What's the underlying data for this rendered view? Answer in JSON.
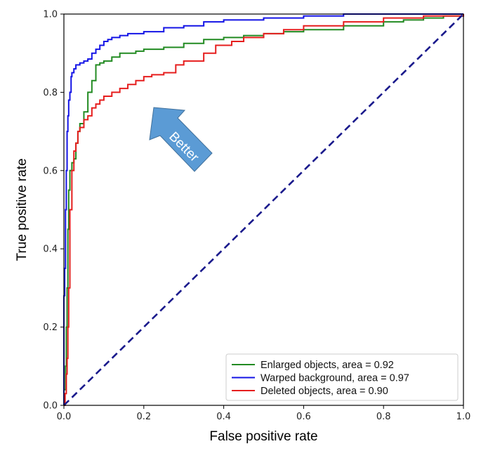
{
  "chart_data": {
    "type": "line",
    "title": "",
    "xlabel": "False positive rate",
    "ylabel": "True positive rate",
    "xlim": [
      0.0,
      1.0
    ],
    "ylim": [
      0.0,
      1.0
    ],
    "x_ticks": [
      "0.0",
      "0.2",
      "0.4",
      "0.6",
      "0.8",
      "1.0"
    ],
    "y_ticks": [
      "0.0",
      "0.2",
      "0.4",
      "0.6",
      "0.8",
      "1.0"
    ],
    "grid": false,
    "legend_position": "lower-right",
    "annotation": "Better",
    "series": [
      {
        "name": "Enlarged objects, area = 0.92",
        "color": "#228b22",
        "x": [
          0.0,
          0.0,
          0.004,
          0.006,
          0.008,
          0.01,
          0.012,
          0.015,
          0.02,
          0.025,
          0.03,
          0.035,
          0.04,
          0.05,
          0.06,
          0.07,
          0.08,
          0.09,
          0.1,
          0.12,
          0.14,
          0.16,
          0.18,
          0.2,
          0.25,
          0.3,
          0.35,
          0.4,
          0.45,
          0.5,
          0.55,
          0.6,
          0.7,
          0.8,
          0.85,
          0.9,
          0.95,
          1.0
        ],
        "y": [
          0.0,
          0.04,
          0.1,
          0.2,
          0.3,
          0.45,
          0.55,
          0.6,
          0.62,
          0.63,
          0.67,
          0.7,
          0.72,
          0.75,
          0.8,
          0.83,
          0.87,
          0.875,
          0.88,
          0.89,
          0.9,
          0.9,
          0.905,
          0.91,
          0.915,
          0.925,
          0.935,
          0.94,
          0.945,
          0.95,
          0.955,
          0.96,
          0.97,
          0.98,
          0.985,
          0.99,
          0.995,
          1.0
        ]
      },
      {
        "name": "Warped background, area = 0.97",
        "color": "#1414e6",
        "x": [
          0.0,
          0.0,
          0.002,
          0.004,
          0.006,
          0.008,
          0.01,
          0.012,
          0.015,
          0.018,
          0.02,
          0.025,
          0.03,
          0.04,
          0.05,
          0.06,
          0.07,
          0.08,
          0.09,
          0.1,
          0.11,
          0.12,
          0.14,
          0.16,
          0.2,
          0.25,
          0.3,
          0.35,
          0.4,
          0.5,
          0.6,
          0.7,
          0.8,
          0.9,
          1.0
        ],
        "y": [
          0.0,
          0.28,
          0.35,
          0.5,
          0.6,
          0.7,
          0.74,
          0.78,
          0.8,
          0.84,
          0.85,
          0.86,
          0.87,
          0.875,
          0.88,
          0.885,
          0.9,
          0.91,
          0.92,
          0.93,
          0.935,
          0.94,
          0.945,
          0.95,
          0.955,
          0.965,
          0.97,
          0.98,
          0.985,
          0.99,
          0.995,
          1.0,
          1.0,
          1.0,
          1.0
        ]
      },
      {
        "name": "Deleted objects, area = 0.90",
        "color": "#e61e1e",
        "x": [
          0.0,
          0.003,
          0.006,
          0.008,
          0.01,
          0.012,
          0.015,
          0.02,
          0.025,
          0.03,
          0.035,
          0.04,
          0.05,
          0.06,
          0.07,
          0.08,
          0.09,
          0.1,
          0.12,
          0.14,
          0.16,
          0.18,
          0.2,
          0.22,
          0.25,
          0.28,
          0.3,
          0.35,
          0.38,
          0.42,
          0.45,
          0.5,
          0.55,
          0.6,
          0.7,
          0.8,
          0.9,
          1.0
        ],
        "y": [
          0.0,
          0.03,
          0.08,
          0.12,
          0.2,
          0.3,
          0.5,
          0.6,
          0.65,
          0.67,
          0.7,
          0.71,
          0.73,
          0.74,
          0.76,
          0.77,
          0.78,
          0.79,
          0.8,
          0.81,
          0.82,
          0.83,
          0.84,
          0.845,
          0.85,
          0.87,
          0.88,
          0.9,
          0.92,
          0.93,
          0.94,
          0.95,
          0.96,
          0.97,
          0.98,
          0.99,
          0.995,
          1.0
        ]
      }
    ],
    "reference_line": {
      "style": "dashed",
      "color": "#1a1a8c",
      "x": [
        0.0,
        1.0
      ],
      "y": [
        0.0,
        1.0
      ]
    }
  }
}
